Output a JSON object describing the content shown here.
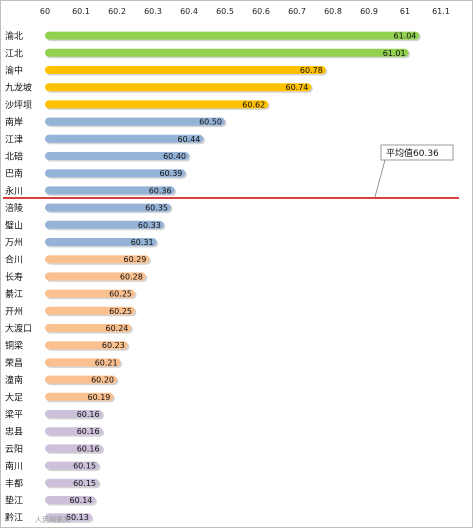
{
  "chart_data": {
    "type": "bar",
    "orientation": "horizontal",
    "title": "",
    "xlabel": "",
    "ylabel": "",
    "xlim": [
      60,
      61.1
    ],
    "x_ticks": [
      "60",
      "60.1",
      "60.2",
      "60.3",
      "60.4",
      "60.5",
      "60.6",
      "60.7",
      "60.8",
      "60.9",
      "61",
      "61.1"
    ],
    "x_tick_values": [
      60,
      60.1,
      60.2,
      60.3,
      60.4,
      60.5,
      60.6,
      60.7,
      60.8,
      60.9,
      61,
      61.1
    ],
    "x_axis_position": "top",
    "grid": false,
    "legend": "none",
    "categories": [
      "渝北",
      "江北",
      "渝中",
      "九龙坡",
      "沙坪坝",
      "南岸",
      "江津",
      "北碚",
      "巴南",
      "永川",
      "涪陵",
      "璧山",
      "万州",
      "合川",
      "长寿",
      "綦江",
      "开州",
      "大渡口",
      "铜梁",
      "荣昌",
      "潼南",
      "大足",
      "梁平",
      "忠县",
      "云阳",
      "南川",
      "丰都",
      "垫江",
      "黔江"
    ],
    "values": [
      61.04,
      61.01,
      60.78,
      60.74,
      60.62,
      60.5,
      60.44,
      60.4,
      60.39,
      60.36,
      60.35,
      60.33,
      60.31,
      60.29,
      60.28,
      60.25,
      60.25,
      60.24,
      60.23,
      60.21,
      60.2,
      60.19,
      60.16,
      60.16,
      60.16,
      60.15,
      60.15,
      60.14,
      60.13
    ],
    "data_labels": [
      "61.04",
      "61.01",
      "60.78",
      "60.74",
      "60.62",
      "60.50",
      "60.44",
      "60.40",
      "60.39",
      "60.36",
      "60.35",
      "60.33",
      "60.31",
      "60.29",
      "60.28",
      "60.25",
      "60.25",
      "60.24",
      "60.23",
      "60.21",
      "60.20",
      "60.19",
      "60.16",
      "60.16",
      "60.16",
      "60.15",
      "60.15",
      "60.14",
      "60.13"
    ],
    "group_colors": [
      "#92d050",
      "#92d050",
      "#ffc000",
      "#ffc000",
      "#ffc000",
      "#95b3d7",
      "#95b3d7",
      "#95b3d7",
      "#95b3d7",
      "#95b3d7",
      "#95b3d7",
      "#95b3d7",
      "#95b3d7",
      "#fac090",
      "#fac090",
      "#fac090",
      "#fac090",
      "#fac090",
      "#fac090",
      "#fac090",
      "#fac090",
      "#fac090",
      "#ccc0da",
      "#ccc0da",
      "#ccc0da",
      "#ccc0da",
      "#ccc0da",
      "#ccc0da",
      "#ccc0da"
    ],
    "reference_line": {
      "value": 60.36,
      "color": "#cc0000",
      "after_category": "永川"
    },
    "annotation": {
      "text": "平均值60.36",
      "placement": "top-right"
    }
  },
  "watermark": "人民网重庆"
}
